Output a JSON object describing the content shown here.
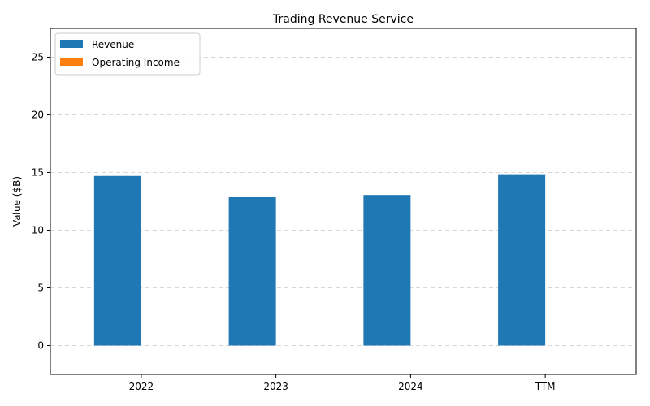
{
  "chart_data": {
    "type": "bar",
    "title": "Trading Revenue Service",
    "xlabel": "",
    "ylabel": "Value ($B)",
    "categories": [
      "2022",
      "2023",
      "2024",
      "TTM"
    ],
    "series": [
      {
        "name": "Revenue",
        "color": "#1f77b4",
        "values": [
          14.7,
          12.9,
          13.05,
          14.85
        ]
      },
      {
        "name": "Operating Income",
        "color": "#ff7f0e",
        "values": [
          0,
          0,
          0,
          0
        ]
      }
    ],
    "ylim": [
      -2.5,
      27.5
    ],
    "yticks": [
      0,
      5,
      10,
      15,
      20,
      25
    ],
    "grid": "y-dashed",
    "legend_position": "top-left"
  }
}
